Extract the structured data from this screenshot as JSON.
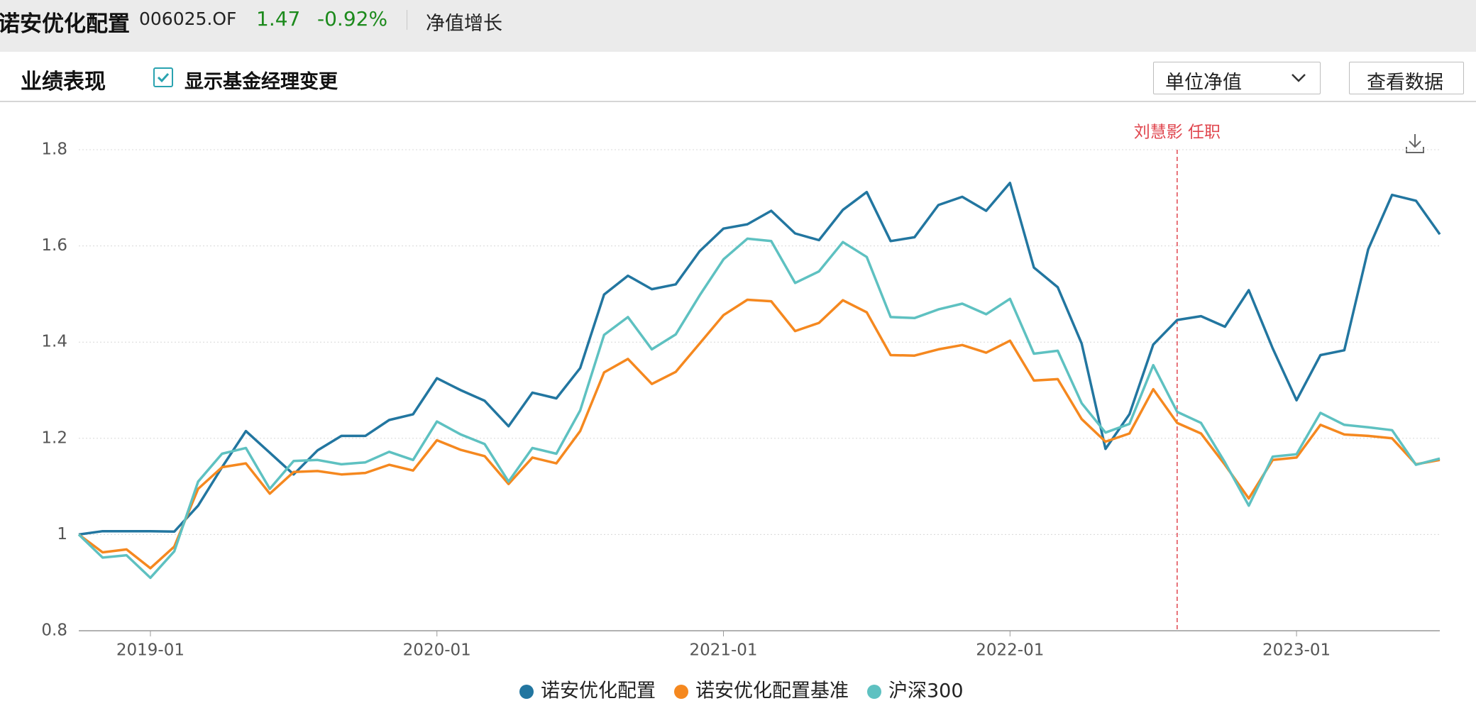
{
  "header": {
    "name": "诺安优化配置",
    "code": "006025.OF",
    "price": "1.47",
    "change": "-0.92%",
    "tab": "净值增长"
  },
  "toolbar": {
    "title": "业绩表现",
    "checkbox_label": "显示基金经理变更",
    "select": "单位净值",
    "button": "查看数据"
  },
  "chart_data": {
    "type": "line",
    "x": [
      "2018-10",
      "2018-11",
      "2018-12",
      "2019-01",
      "2019-02",
      "2019-03",
      "2019-04",
      "2019-05",
      "2019-06",
      "2019-07",
      "2019-08",
      "2019-09",
      "2019-10",
      "2019-11",
      "2019-12",
      "2020-01",
      "2020-02",
      "2020-03",
      "2020-04",
      "2020-05",
      "2020-06",
      "2020-07",
      "2020-08",
      "2020-09",
      "2020-10",
      "2020-11",
      "2020-12",
      "2021-01",
      "2021-02",
      "2021-03",
      "2021-04",
      "2021-05",
      "2021-06",
      "2021-07",
      "2021-08",
      "2021-09",
      "2021-10",
      "2021-11",
      "2021-12",
      "2022-01",
      "2022-02",
      "2022-03",
      "2022-04",
      "2022-05",
      "2022-06",
      "2022-07",
      "2022-08",
      "2022-09",
      "2022-10",
      "2022-11",
      "2022-12",
      "2023-01",
      "2023-02",
      "2023-03",
      "2023-04",
      "2023-05",
      "2023-06",
      "2023-07"
    ],
    "xlim": [
      "2018-10",
      "2023-07"
    ],
    "xticks": [
      "2019-01",
      "2020-01",
      "2021-01",
      "2022-01",
      "2023-01"
    ],
    "ylim": [
      0.8,
      1.8
    ],
    "yticks": [
      0.8,
      1,
      1.2,
      1.4,
      1.6,
      1.8
    ],
    "grid": true,
    "series": [
      {
        "name": "诺安优化配置",
        "color": "#2276a0",
        "values": [
          1.0,
          1.007,
          1.007,
          1.007,
          1.006,
          1.06,
          1.14,
          1.215,
          1.17,
          1.125,
          1.175,
          1.205,
          1.205,
          1.238,
          1.25,
          1.325,
          1.3,
          1.278,
          1.225,
          1.295,
          1.283,
          1.346,
          1.499,
          1.538,
          1.51,
          1.52,
          1.589,
          1.636,
          1.645,
          1.673,
          1.626,
          1.612,
          1.675,
          1.712,
          1.61,
          1.618,
          1.685,
          1.702,
          1.673,
          1.731,
          1.555,
          1.514,
          1.397,
          1.178,
          1.25,
          1.395,
          1.446,
          1.454,
          1.432,
          1.508,
          1.387,
          1.279,
          1.373,
          1.383,
          1.593,
          1.706,
          1.694,
          1.624
        ]
      },
      {
        "name": "诺安优化配置基准",
        "color": "#f5881f",
        "values": [
          1.0,
          0.963,
          0.969,
          0.93,
          0.975,
          1.095,
          1.14,
          1.148,
          1.085,
          1.13,
          1.132,
          1.125,
          1.128,
          1.145,
          1.133,
          1.196,
          1.176,
          1.163,
          1.105,
          1.16,
          1.148,
          1.215,
          1.337,
          1.365,
          1.313,
          1.338,
          1.397,
          1.456,
          1.488,
          1.485,
          1.423,
          1.44,
          1.487,
          1.462,
          1.373,
          1.372,
          1.385,
          1.394,
          1.378,
          1.403,
          1.32,
          1.323,
          1.24,
          1.193,
          1.21,
          1.302,
          1.232,
          1.21,
          1.145,
          1.075,
          1.155,
          1.16,
          1.228,
          1.208,
          1.205,
          1.2,
          1.146,
          1.155
        ]
      },
      {
        "name": "沪深300",
        "color": "#5ec1c1",
        "values": [
          1.0,
          0.952,
          0.957,
          0.91,
          0.965,
          1.11,
          1.168,
          1.18,
          1.095,
          1.153,
          1.155,
          1.146,
          1.15,
          1.172,
          1.155,
          1.235,
          1.208,
          1.188,
          1.11,
          1.18,
          1.168,
          1.258,
          1.415,
          1.452,
          1.385,
          1.416,
          1.497,
          1.572,
          1.615,
          1.61,
          1.523,
          1.547,
          1.608,
          1.577,
          1.452,
          1.45,
          1.468,
          1.48,
          1.458,
          1.49,
          1.376,
          1.382,
          1.273,
          1.212,
          1.23,
          1.352,
          1.255,
          1.232,
          1.15,
          1.06,
          1.162,
          1.167,
          1.253,
          1.228,
          1.223,
          1.217,
          1.145,
          1.158
        ]
      }
    ],
    "annotations": [
      {
        "label": "刘慧影 任职",
        "x": "2022-08",
        "color": "#e0474f"
      }
    ]
  }
}
